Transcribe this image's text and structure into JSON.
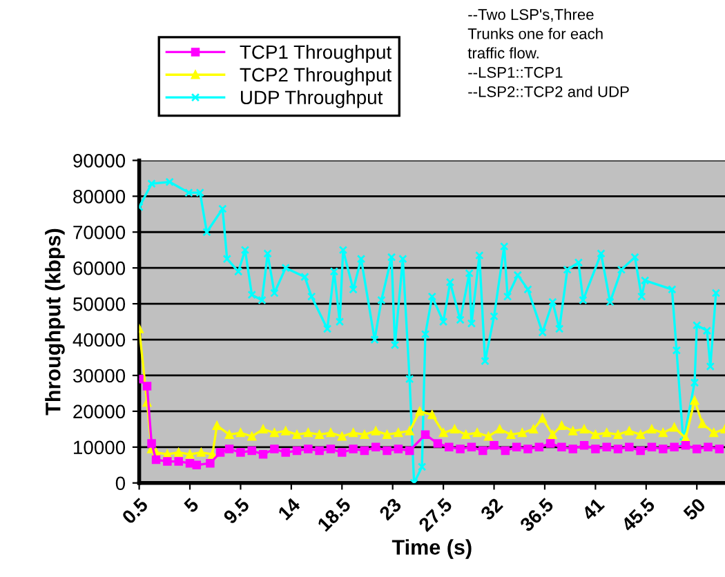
{
  "chart_data": {
    "type": "line",
    "xlabel": "Time (s)",
    "ylabel": "Throughput (kbps)",
    "xlim": [
      0.5,
      52.5
    ],
    "xticks": [
      0.5,
      5,
      9.5,
      14,
      18.5,
      23,
      27.5,
      32,
      36.5,
      41,
      45.5,
      50
    ],
    "ylim": [
      0,
      90000
    ],
    "yticks": [
      0,
      10000,
      20000,
      30000,
      40000,
      50000,
      60000,
      70000,
      80000,
      90000
    ],
    "grid": "y",
    "legend": "top",
    "annotations": [
      "--Two LSP's,Three\nTrunks one for each\ntraffic flow.\n--LSP1::TCP1\n--LSP2::TCP2 and UDP"
    ],
    "series": [
      {
        "name": "TCP1 Throughput",
        "color": "#ff00ff",
        "marker": "square",
        "x": [
          0.5,
          1.2,
          1.6,
          2,
          3,
          4,
          5,
          5.6,
          6.8,
          7.7,
          8.5,
          9.5,
          10.5,
          11.5,
          12.5,
          13.5,
          14.5,
          15.5,
          16.5,
          17.5,
          18.5,
          19.5,
          20.5,
          21.5,
          22.5,
          23.5,
          24.5,
          25.9,
          27,
          28,
          29,
          30,
          31,
          32,
          33,
          34,
          35,
          36,
          37,
          38,
          39,
          40,
          41,
          42,
          43,
          44,
          45,
          46,
          47,
          48,
          49,
          50,
          51,
          52
        ],
        "values": [
          29000,
          27000,
          11000,
          6500,
          6000,
          6000,
          5500,
          5000,
          5500,
          8500,
          9500,
          8500,
          9000,
          8000,
          9500,
          8500,
          9000,
          9500,
          9000,
          9500,
          8500,
          9500,
          9000,
          10000,
          9000,
          9500,
          9000,
          13500,
          11000,
          10000,
          9500,
          10000,
          9000,
          10500,
          9000,
          10000,
          9500,
          10000,
          11000,
          10000,
          9500,
          10500,
          9500,
          10000,
          9500,
          10000,
          9000,
          10000,
          9500,
          10000,
          10500,
          9500,
          10000,
          9500
        ]
      },
      {
        "name": "TCP2 Throughput",
        "color": "#ffff00",
        "marker": "triangle",
        "x": [
          0.5,
          1.2,
          1.6,
          2,
          3,
          4,
          5,
          6,
          7,
          7.4,
          8.5,
          9.5,
          10.5,
          11.5,
          12.5,
          13.5,
          14.5,
          15.5,
          16.5,
          17.5,
          18.5,
          19.5,
          20.5,
          21.5,
          22.5,
          23.5,
          24.5,
          25.4,
          26.5,
          27.5,
          28.5,
          29.5,
          30.5,
          31.5,
          32.5,
          33.5,
          34.5,
          35.5,
          36.3,
          37.2,
          38,
          39,
          40,
          41,
          42,
          43,
          44,
          45,
          46,
          47,
          48,
          49,
          49.8,
          50.5,
          51.5,
          52.5
        ],
        "values": [
          43000,
          22500,
          9500,
          8500,
          8000,
          8500,
          8000,
          8500,
          8000,
          16000,
          13500,
          14000,
          13000,
          15000,
          14000,
          14500,
          13500,
          14000,
          13500,
          14000,
          13000,
          14000,
          13500,
          14500,
          13500,
          14000,
          14500,
          20000,
          19000,
          14000,
          15000,
          13500,
          14000,
          13000,
          15000,
          13500,
          14000,
          15000,
          18000,
          13500,
          16000,
          14500,
          15000,
          13500,
          14000,
          13500,
          14500,
          13500,
          15000,
          14000,
          15500,
          12500,
          23000,
          16500,
          14000,
          15000
        ]
      },
      {
        "name": "UDP Throughput",
        "color": "#00ffff",
        "marker": "cross",
        "x": [
          0.5,
          1.6,
          3.2,
          4.9,
          5.9,
          6.5,
          7.9,
          8.3,
          9.3,
          9.9,
          10.5,
          11.4,
          11.9,
          12.5,
          13.5,
          15.2,
          15.8,
          17.2,
          17.8,
          18.3,
          18.6,
          19.5,
          20.2,
          21.4,
          22.0,
          22.9,
          23.2,
          23.9,
          24.5,
          24.9,
          25.6,
          25.9,
          26.5,
          27.5,
          28.1,
          29.0,
          29.8,
          30.0,
          30.7,
          31.2,
          32.0,
          32.9,
          33.2,
          34.1,
          35.0,
          36.3,
          37.2,
          37.8,
          38.5,
          39.5,
          39.9,
          41.5,
          42.3,
          43.3,
          44.5,
          45.1,
          45.4,
          47.8,
          48.2,
          48.8,
          49.8,
          50.0,
          50.9,
          51.2,
          51.7
        ],
        "values": [
          77000,
          83500,
          84000,
          81000,
          81000,
          70000,
          76500,
          62500,
          59000,
          65000,
          52500,
          51000,
          64000,
          53000,
          60000,
          57500,
          52000,
          43000,
          59000,
          45000,
          65000,
          54000,
          62500,
          40000,
          51000,
          63000,
          38500,
          62500,
          29000,
          0,
          4500,
          41500,
          52000,
          45000,
          56000,
          45500,
          58500,
          44500,
          63500,
          34000,
          46500,
          66000,
          52000,
          58000,
          54000,
          42000,
          50500,
          43000,
          59500,
          61500,
          51000,
          64000,
          50500,
          59500,
          63000,
          52000,
          56500,
          54000,
          37000,
          11500,
          28000,
          44000,
          42500,
          32500,
          53000
        ]
      }
    ]
  }
}
